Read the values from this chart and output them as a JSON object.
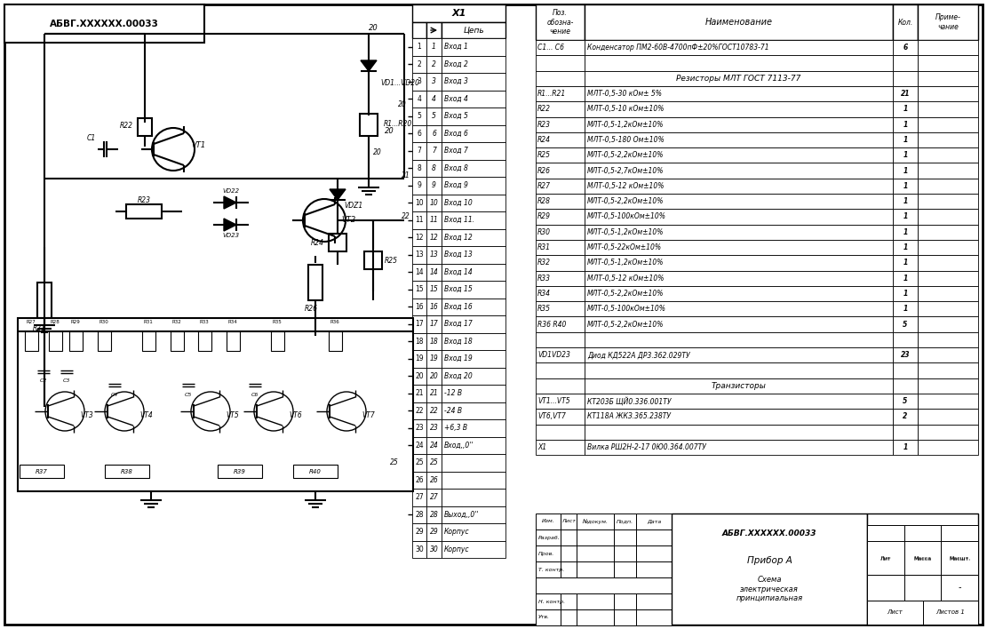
{
  "bg_color": "#ffffff",
  "connector_rows": [
    [
      "1",
      "Вход 1"
    ],
    [
      "2",
      "Вход 2"
    ],
    [
      "3",
      "Вход 3"
    ],
    [
      "4",
      "Вход 4"
    ],
    [
      "5",
      "Вход 5"
    ],
    [
      "6",
      "Вход 6"
    ],
    [
      "7",
      "Вход 7"
    ],
    [
      "8",
      "Вход 8"
    ],
    [
      "9",
      "Вход 9"
    ],
    [
      "10",
      "Вход 10"
    ],
    [
      "11",
      "Вход 11."
    ],
    [
      "12",
      "Вход 12"
    ],
    [
      "13",
      "Вход 13"
    ],
    [
      "14",
      "Вход 14"
    ],
    [
      "15",
      "Вход 15"
    ],
    [
      "16",
      "Вход 16"
    ],
    [
      "17",
      "Вход 17"
    ],
    [
      "18",
      "Вход 18"
    ],
    [
      "19",
      "Вход 19"
    ],
    [
      "20",
      "Вход 20"
    ],
    [
      "21",
      "-12 В"
    ],
    [
      "22",
      "-24 В"
    ],
    [
      "23",
      "+6,3 В"
    ],
    [
      "24",
      "Вход,,0''"
    ],
    [
      "25",
      ""
    ],
    [
      "26",
      ""
    ],
    [
      "27",
      ""
    ],
    [
      "28",
      "Выход,,0''"
    ],
    [
      "29",
      "Корпус"
    ],
    [
      "30",
      "Корпус"
    ]
  ],
  "bom_rows": [
    [
      "C1... C6",
      "Конденсатор ПМ2-60В-4700пФ±20%ГОСТ10783-71",
      "6",
      ""
    ],
    [
      "",
      "",
      "",
      ""
    ],
    [
      "",
      "Резисторы МЛТ ГОСТ 7113-77",
      "",
      ""
    ],
    [
      "R1...R21",
      "МЛТ-0,5-30 кОм± 5%",
      "21",
      ""
    ],
    [
      "R22",
      "МЛТ-0,5-10 кОм±10%",
      "1",
      ""
    ],
    [
      "R23",
      "МЛТ-0,5-1,2кОм±10%",
      "1",
      ""
    ],
    [
      "R24",
      "МЛТ-0,5-180 Ом±10%",
      "1",
      ""
    ],
    [
      "R25",
      "МЛТ-0,5-2,2кОм±10%",
      "1",
      ""
    ],
    [
      "R26",
      "МЛТ-0,5-2,7кОм±10%",
      "1",
      ""
    ],
    [
      "R27",
      "МЛТ-0,5-12 кОм±10%",
      "1",
      ""
    ],
    [
      "R28",
      "МЛТ-0,5-2,2кОм±10%",
      "1",
      ""
    ],
    [
      "R29",
      "МЛТ-0,5-100кОм±10%",
      "1",
      ""
    ],
    [
      "R30",
      "МЛТ-0,5-1,2кОм±10%",
      "1",
      ""
    ],
    [
      "R31",
      "МЛТ-0,5-22кОм±10%",
      "1",
      ""
    ],
    [
      "R32",
      "МЛТ-0,5-1,2кОм±10%",
      "1",
      ""
    ],
    [
      "R33",
      "МЛТ-0,5-12 кОм±10%",
      "1",
      ""
    ],
    [
      "R34",
      "МЛТ-0,5-2,2кОм±10%",
      "1",
      ""
    ],
    [
      "R35",
      "МЛТ-0,5-100кОм±10%",
      "1",
      ""
    ],
    [
      "R36 R40",
      "МЛТ-0,5-2,2кОм±10%",
      "5",
      ""
    ],
    [
      "",
      "",
      "",
      ""
    ],
    [
      "VD1VD23",
      "Диод КД522А ДР3.362.029ТУ",
      "23",
      ""
    ],
    [
      "",
      "",
      "",
      ""
    ],
    [
      "",
      "Транзисторы",
      "",
      ""
    ],
    [
      "VT1...VT5",
      "КТ203Б ЩЙ0.336.001ТУ",
      "5",
      ""
    ],
    [
      "VT6,VT7",
      "КТ118А ЖКЗ.365.238ТУ",
      "2",
      ""
    ],
    [
      "",
      "",
      "",
      ""
    ],
    [
      "X1",
      "Вилка РШ2Н-2-17 0Ю0.364.007ТУ",
      "1",
      ""
    ]
  ]
}
